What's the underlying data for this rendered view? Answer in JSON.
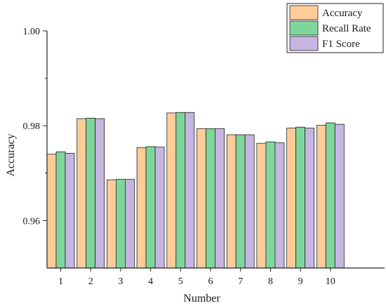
{
  "chart_data": {
    "type": "bar",
    "xlabel": "Number",
    "ylabel": "Accuracy",
    "ylim": [
      0.95,
      1.0
    ],
    "yticks": [
      "0.96",
      "0.98",
      "1.00"
    ],
    "ytick_values": [
      0.96,
      0.98,
      1.0
    ],
    "categories": [
      "1",
      "2",
      "3",
      "4",
      "5",
      "6",
      "7",
      "8",
      "9",
      "10"
    ],
    "grid": false,
    "legend_position": "top-right",
    "series": [
      {
        "name": "Accuracy",
        "color": "#FFCC99",
        "values": [
          0.974,
          0.9815,
          0.9686,
          0.9754,
          0.9827,
          0.9794,
          0.9781,
          0.9763,
          0.9795,
          0.9801
        ]
      },
      {
        "name": "Recall Rate",
        "color": "#7FD69A",
        "values": [
          0.9745,
          0.9816,
          0.9687,
          0.9756,
          0.9828,
          0.9794,
          0.9781,
          0.9766,
          0.9797,
          0.9806
        ]
      },
      {
        "name": "F1 Score",
        "color": "#C6B5E0",
        "values": [
          0.9742,
          0.9815,
          0.9687,
          0.9755,
          0.9828,
          0.9794,
          0.9781,
          0.9764,
          0.9795,
          0.9803
        ]
      }
    ]
  }
}
